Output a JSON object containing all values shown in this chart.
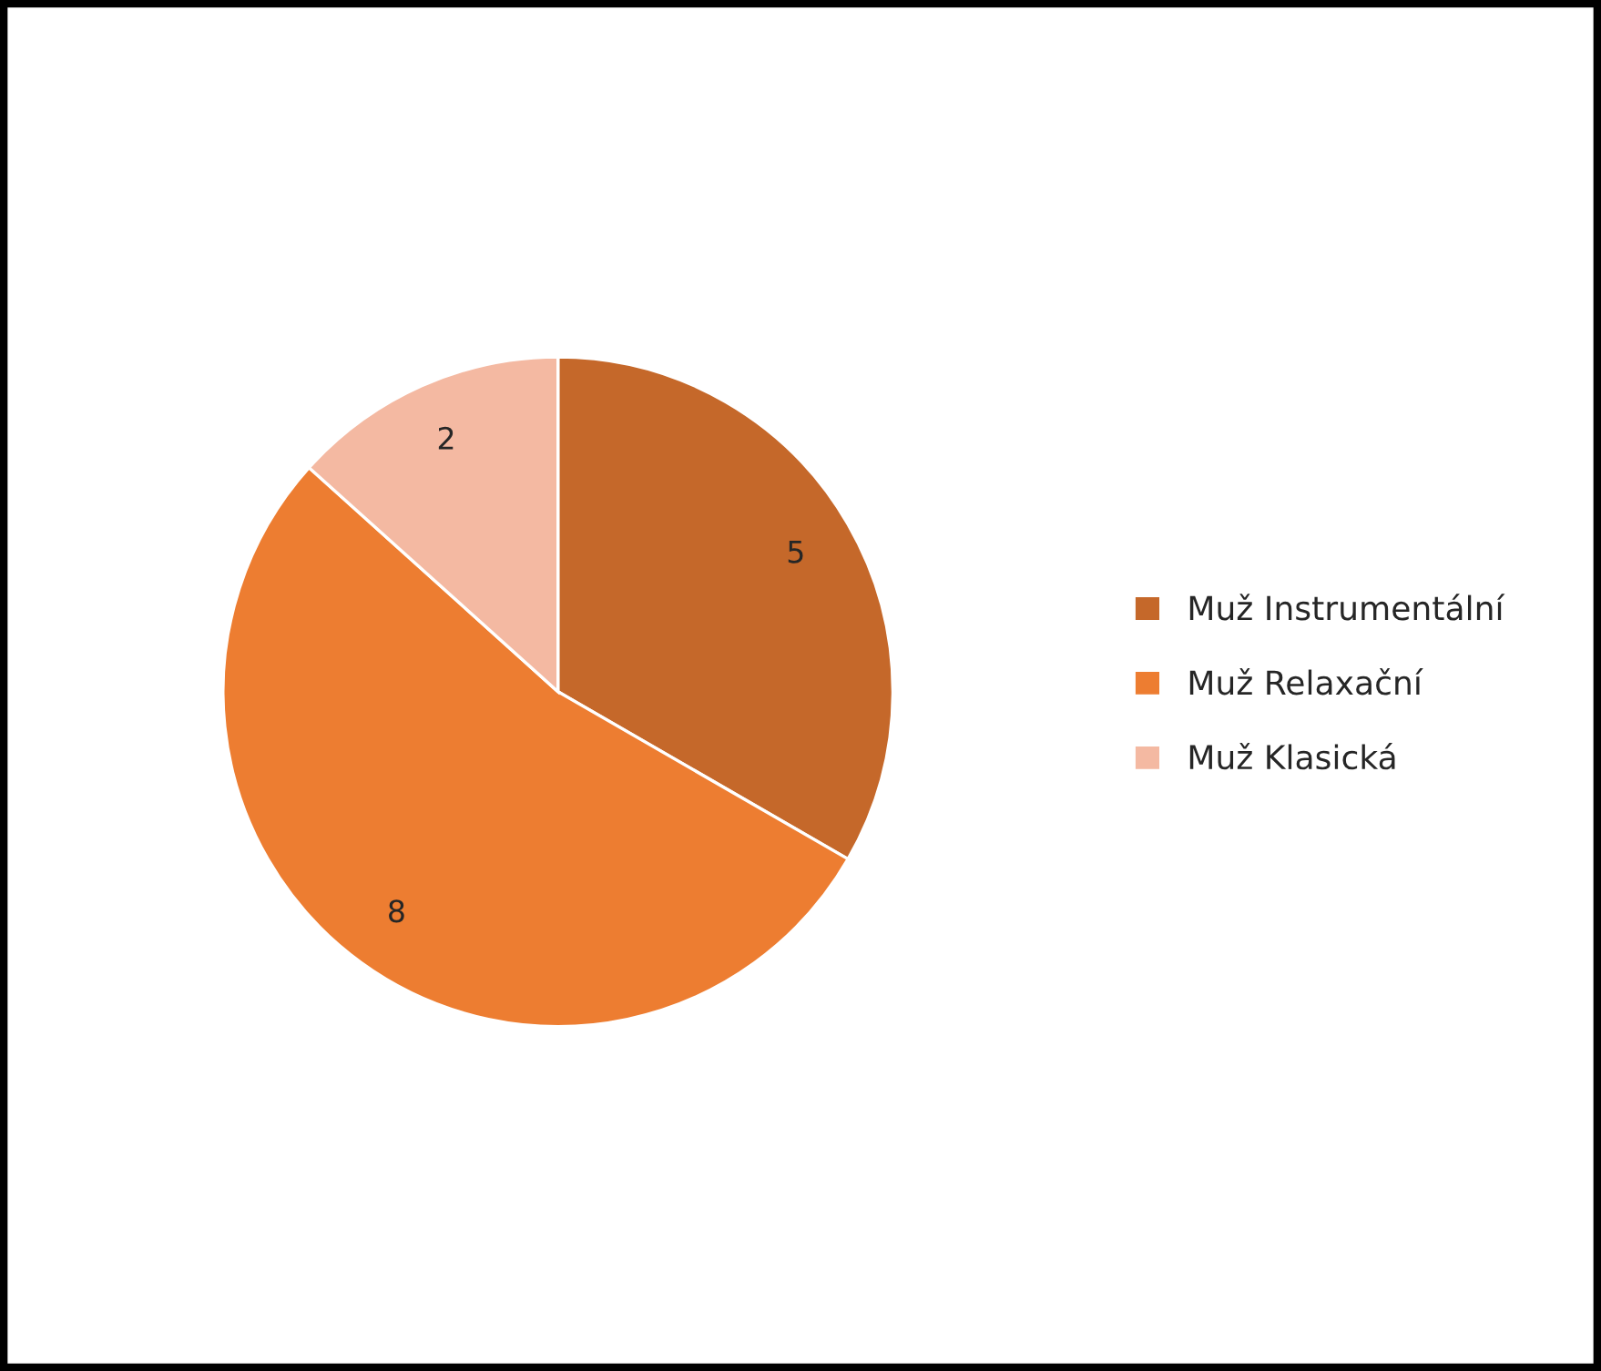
{
  "chart_data": {
    "type": "pie",
    "categories": [
      "Muž Instrumentální",
      "Muž Relaxační",
      "Muž Klasická"
    ],
    "values": [
      5,
      8,
      2
    ],
    "colors": [
      "#c5682a",
      "#ed7d31",
      "#f4b9a2"
    ],
    "data_labels": true,
    "legend": "right"
  }
}
